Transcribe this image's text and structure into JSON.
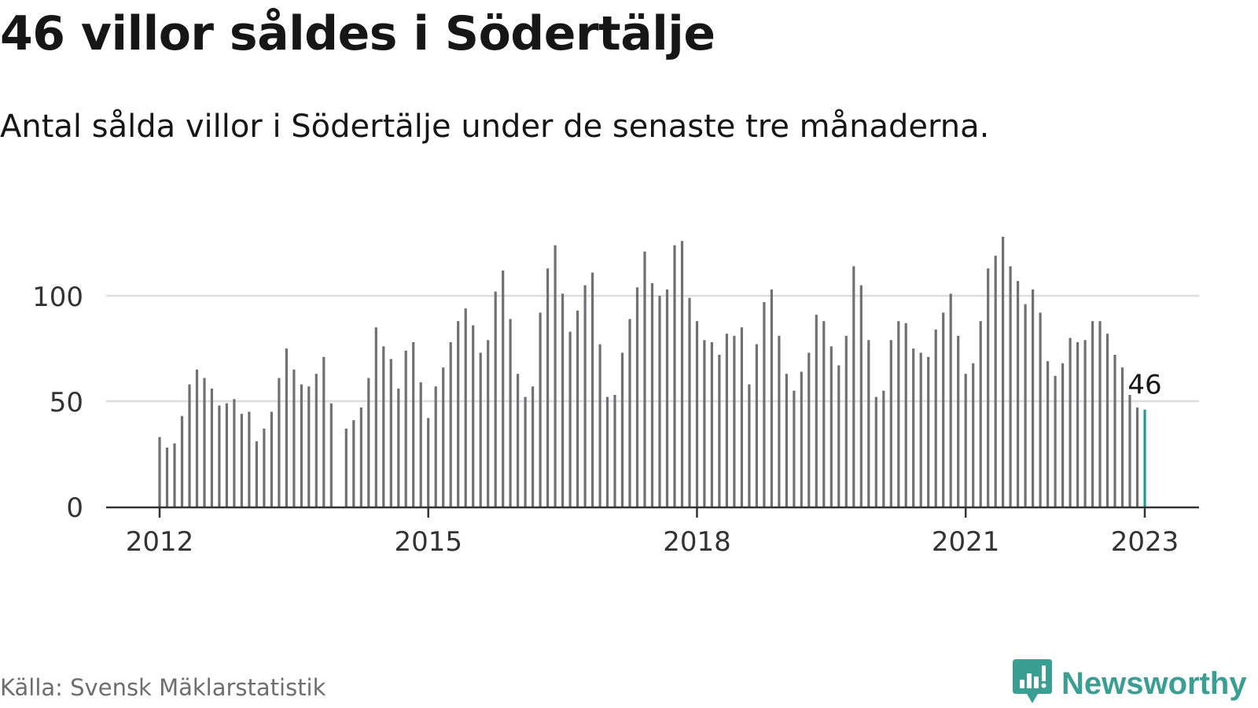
{
  "title": "46 villor såldes i Södertälje",
  "subtitle": "Antal sålda villor i Södertälje under de senaste tre månaderna.",
  "source": "Källa: Svensk Mäklarstatistik",
  "brand": {
    "name": "Newsworthy",
    "icon": "newsworthy-logo-icon",
    "color": "#3b9e93"
  },
  "colors": {
    "bar": "#6f6f74",
    "highlight": "#1b9e93",
    "grid": "#dddddd",
    "axis": "#333333",
    "text": "#161616"
  },
  "chart_data": {
    "type": "bar",
    "title": "46 villor såldes i Södertälje",
    "subtitle": "Antal sålda villor i Södertälje under de senaste tre månaderna.",
    "xlabel": "",
    "ylabel": "",
    "ylim": [
      0,
      130
    ],
    "yticks": [
      0,
      50,
      100
    ],
    "grid": true,
    "x_start": "2012-01",
    "x_end": "2023-01",
    "xticks": [
      {
        "label": "2012",
        "month": "2012-01"
      },
      {
        "label": "2015",
        "month": "2015-01"
      },
      {
        "label": "2018",
        "month": "2018-01"
      },
      {
        "label": "2021",
        "month": "2021-01"
      },
      {
        "label": "2023",
        "month": "2023-01"
      }
    ],
    "highlight": {
      "month": "2023-01",
      "value": 46,
      "label": "46"
    },
    "months": [
      "2012-01",
      "2012-02",
      "2012-03",
      "2012-04",
      "2012-05",
      "2012-06",
      "2012-07",
      "2012-08",
      "2012-09",
      "2012-10",
      "2012-11",
      "2012-12",
      "2013-01",
      "2013-02",
      "2013-03",
      "2013-04",
      "2013-05",
      "2013-06",
      "2013-07",
      "2013-08",
      "2013-09",
      "2013-10",
      "2013-11",
      "2013-12",
      "2014-01",
      "2014-02",
      "2014-03",
      "2014-04",
      "2014-05",
      "2014-06",
      "2014-07",
      "2014-08",
      "2014-09",
      "2014-10",
      "2014-11",
      "2014-12",
      "2015-01",
      "2015-02",
      "2015-03",
      "2015-04",
      "2015-05",
      "2015-06",
      "2015-07",
      "2015-08",
      "2015-09",
      "2015-10",
      "2015-11",
      "2015-12",
      "2016-01",
      "2016-02",
      "2016-03",
      "2016-04",
      "2016-05",
      "2016-06",
      "2016-07",
      "2016-08",
      "2016-09",
      "2016-10",
      "2016-11",
      "2016-12",
      "2017-01",
      "2017-02",
      "2017-03",
      "2017-04",
      "2017-05",
      "2017-06",
      "2017-07",
      "2017-08",
      "2017-09",
      "2017-10",
      "2017-11",
      "2017-12",
      "2018-01",
      "2018-02",
      "2018-03",
      "2018-04",
      "2018-05",
      "2018-06",
      "2018-07",
      "2018-08",
      "2018-09",
      "2018-10",
      "2018-11",
      "2018-12",
      "2019-01",
      "2019-02",
      "2019-03",
      "2019-04",
      "2019-05",
      "2019-06",
      "2019-07",
      "2019-08",
      "2019-09",
      "2019-10",
      "2019-11",
      "2019-12",
      "2020-01",
      "2020-02",
      "2020-03",
      "2020-04",
      "2020-05",
      "2020-06",
      "2020-07",
      "2020-08",
      "2020-09",
      "2020-10",
      "2020-11",
      "2020-12",
      "2021-01",
      "2021-02",
      "2021-03",
      "2021-04",
      "2021-05",
      "2021-06",
      "2021-07",
      "2021-08",
      "2021-09",
      "2021-10",
      "2021-11",
      "2021-12",
      "2022-01",
      "2022-02",
      "2022-03",
      "2022-04",
      "2022-05",
      "2022-06",
      "2022-07",
      "2022-08",
      "2022-09",
      "2022-10",
      "2022-11",
      "2022-12",
      "2023-01"
    ],
    "values": [
      33,
      28,
      30,
      43,
      58,
      65,
      61,
      56,
      48,
      49,
      51,
      44,
      45,
      31,
      37,
      45,
      61,
      75,
      65,
      58,
      57,
      63,
      71,
      49,
      0,
      37,
      41,
      47,
      61,
      85,
      76,
      70,
      56,
      74,
      78,
      59,
      42,
      57,
      66,
      78,
      88,
      94,
      86,
      73,
      79,
      102,
      112,
      89,
      63,
      52,
      57,
      92,
      113,
      124,
      101,
      83,
      93,
      105,
      111,
      77,
      52,
      53,
      73,
      89,
      104,
      121,
      106,
      100,
      103,
      124,
      126,
      99,
      88,
      79,
      78,
      72,
      82,
      81,
      85,
      58,
      77,
      97,
      103,
      81,
      63,
      55,
      64,
      73,
      91,
      88,
      76,
      67,
      81,
      114,
      105,
      79,
      52,
      55,
      79,
      88,
      87,
      75,
      73,
      71,
      84,
      92,
      101,
      81,
      63,
      68,
      88,
      113,
      119,
      128,
      114,
      107,
      96,
      103,
      92,
      69,
      62,
      68,
      80,
      78,
      79,
      88,
      88,
      82,
      72,
      66,
      53,
      47,
      46
    ]
  }
}
